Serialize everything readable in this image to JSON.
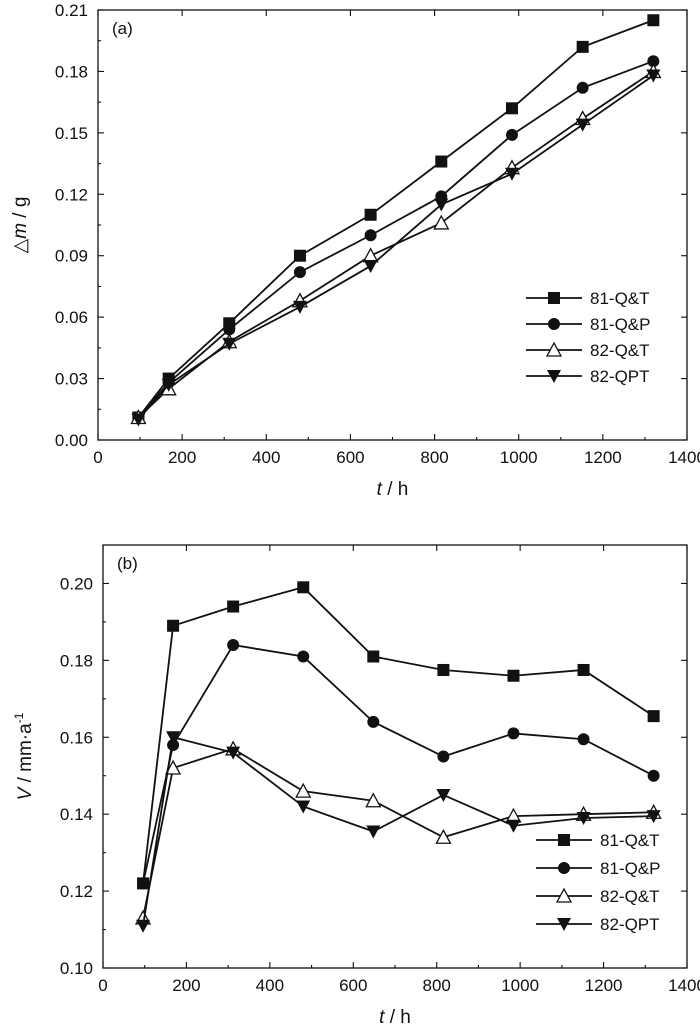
{
  "chart_data": [
    {
      "type": "line",
      "panel_label": "(a)",
      "title": "",
      "xlabel": {
        "var": "t",
        "unit": " / h"
      },
      "ylabel": {
        "prefix": "△",
        "var": "m",
        "unit": " / g",
        "sup": ""
      },
      "xlim": [
        0,
        1400
      ],
      "ylim": [
        0.0,
        0.21
      ],
      "xticks": [
        0,
        200,
        400,
        600,
        800,
        1000,
        1200,
        1400
      ],
      "yticks": [
        0.0,
        0.03,
        0.06,
        0.09,
        0.12,
        0.15,
        0.18,
        0.21
      ],
      "xtick_labels": [
        "0",
        "200",
        "400",
        "600",
        "800",
        "1000",
        "1200",
        "1400"
      ],
      "ytick_labels": [
        "0.00",
        "0.03",
        "0.06",
        "0.09",
        "0.12",
        "0.15",
        "0.18",
        "0.21"
      ],
      "legend_position": "lower-right",
      "series": [
        {
          "name": "81-Q&T",
          "marker": "square",
          "x": [
            96,
            168,
            312,
            480,
            648,
            816,
            984,
            1152,
            1320
          ],
          "y": [
            0.011,
            0.03,
            0.057,
            0.09,
            0.11,
            0.136,
            0.162,
            0.192,
            0.205
          ]
        },
        {
          "name": "81-Q&P",
          "marker": "circle",
          "x": [
            96,
            168,
            312,
            480,
            648,
            816,
            984,
            1152,
            1320
          ],
          "y": [
            0.011,
            0.028,
            0.054,
            0.082,
            0.1,
            0.119,
            0.149,
            0.172,
            0.185
          ]
        },
        {
          "name": "82-Q&T",
          "marker": "triangle-up-open",
          "x": [
            96,
            168,
            312,
            480,
            648,
            816,
            984,
            1152,
            1320
          ],
          "y": [
            0.011,
            0.025,
            0.048,
            0.068,
            0.09,
            0.106,
            0.133,
            0.157,
            0.18
          ]
        },
        {
          "name": "82-QPT",
          "marker": "triangle-down",
          "x": [
            96,
            168,
            312,
            480,
            648,
            816,
            984,
            1152,
            1320
          ],
          "y": [
            0.01,
            0.027,
            0.047,
            0.065,
            0.085,
            0.115,
            0.13,
            0.154,
            0.178
          ]
        }
      ]
    },
    {
      "type": "line",
      "panel_label": "(b)",
      "title": "",
      "xlabel": {
        "var": "t",
        "unit": " / h"
      },
      "ylabel": {
        "prefix": "",
        "var": "V",
        "unit": " / mm·a",
        "sup": "-1"
      },
      "xlim": [
        0,
        1400
      ],
      "ylim": [
        0.1,
        0.21
      ],
      "xticks": [
        0,
        200,
        400,
        600,
        800,
        1000,
        1200,
        1400
      ],
      "yticks": [
        0.1,
        0.12,
        0.14,
        0.16,
        0.18,
        0.2
      ],
      "xtick_labels": [
        "0",
        "200",
        "400",
        "600",
        "800",
        "1000",
        "1200",
        "1400"
      ],
      "ytick_labels": [
        "0.10",
        "0.12",
        "0.14",
        "0.16",
        "0.18",
        "0.20"
      ],
      "legend_position": "lower-right",
      "series": [
        {
          "name": "81-Q&T",
          "marker": "square",
          "x": [
            96,
            168,
            312,
            480,
            648,
            816,
            984,
            1152,
            1320
          ],
          "y": [
            0.122,
            0.189,
            0.194,
            0.199,
            0.181,
            0.1775,
            0.176,
            0.1775,
            0.1655
          ]
        },
        {
          "name": "81-Q&P",
          "marker": "circle",
          "x": [
            96,
            168,
            312,
            480,
            648,
            816,
            984,
            1152,
            1320
          ],
          "y": [
            0.122,
            0.158,
            0.184,
            0.181,
            0.164,
            0.155,
            0.161,
            0.1595,
            0.15
          ]
        },
        {
          "name": "82-Q&T",
          "marker": "triangle-up-open",
          "x": [
            96,
            168,
            312,
            480,
            648,
            816,
            984,
            1152,
            1320
          ],
          "y": [
            0.113,
            0.152,
            0.157,
            0.146,
            0.1435,
            0.134,
            0.1395,
            0.14,
            0.1405
          ]
        },
        {
          "name": "82-QPT",
          "marker": "triangle-down",
          "x": [
            96,
            168,
            312,
            480,
            648,
            816,
            984,
            1152,
            1320
          ],
          "y": [
            0.111,
            0.16,
            0.156,
            0.142,
            0.1355,
            0.145,
            0.137,
            0.139,
            0.1395
          ]
        }
      ]
    }
  ]
}
